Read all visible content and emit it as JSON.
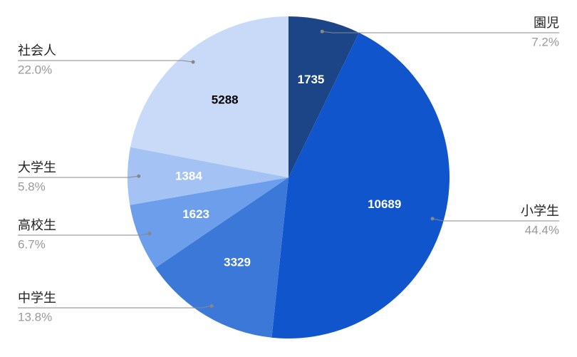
{
  "chart_data": {
    "type": "pie",
    "categories": [
      "園児",
      "小学生",
      "中学生",
      "高校生",
      "大学生",
      "社会人"
    ],
    "values": [
      1735,
      10689,
      3329,
      1623,
      1384,
      5288
    ],
    "percent_labels": [
      "7.2%",
      "44.4%",
      "13.8%",
      "6.7%",
      "5.8%",
      "22.0%"
    ],
    "colors": [
      "#1c4587",
      "#1155cc",
      "#3c78d8",
      "#6d9eeb",
      "#a4c2f4",
      "#c9daf8"
    ]
  }
}
